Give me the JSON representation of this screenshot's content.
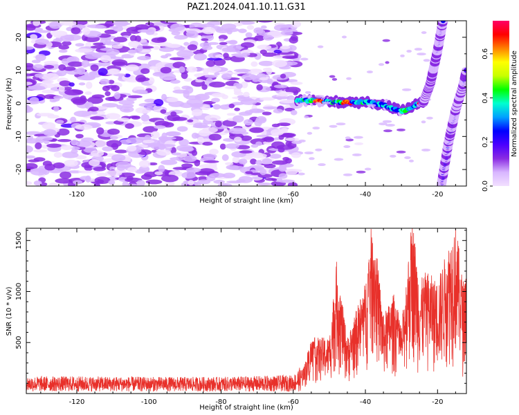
{
  "figure_title": "PAZ1.2024.041.10.11.G31",
  "chart_data": [
    {
      "type": "heatmap",
      "xlabel": "Height of straight line (km)",
      "ylabel": "Frequency (Hz)",
      "xlim": [
        -134,
        -12
      ],
      "ylim": [
        -25,
        25
      ],
      "xticks": [
        -120,
        -100,
        -80,
        -60,
        -40,
        -20
      ],
      "yticks": [
        -20,
        -10,
        0,
        10,
        20
      ],
      "colorbar": {
        "label": "Normalized spectral amplitude",
        "range": [
          0.0,
          0.75
        ],
        "ticks": [
          0.0,
          0.2,
          0.4,
          0.6
        ],
        "colormap": [
          "#f2e0ff",
          "#d8b6ff",
          "#8a2be2",
          "#4b00ff",
          "#0000ff",
          "#00a0ff",
          "#00ffd0",
          "#00ff00",
          "#c8ff00",
          "#ffff00",
          "#ff8000",
          "#ff0000",
          "#ff0066"
        ]
      },
      "features": {
        "noise_region_x": [
          -134,
          -59
        ],
        "carrier_track": {
          "x": [
            -59,
            -55,
            -50,
            -45,
            -40,
            -35,
            -30,
            -27,
            -24,
            -23
          ],
          "y": [
            1.0,
            0.8,
            0.5,
            0.3,
            0.5,
            -0.5,
            -2.5,
            -1.0,
            0.5,
            1.0
          ],
          "peak_amplitude_x": [
            -53,
            -45,
            -24
          ]
        },
        "steep_branch": {
          "x": [
            -24,
            -22,
            -20,
            -18.5
          ],
          "y": [
            0,
            6,
            16,
            25
          ]
        },
        "right_branch": {
          "x": [
            -19,
            -17,
            -15,
            -13,
            -12
          ],
          "y": [
            -25,
            -12,
            -2,
            5,
            10
          ]
        }
      }
    },
    {
      "type": "line",
      "xlabel": "Height of straight line (km)",
      "ylabel": "SNR (10 * v/v)",
      "xlim": [
        -134,
        -12
      ],
      "ylim": [
        0,
        1620
      ],
      "xticks": [
        -120,
        -100,
        -80,
        -60,
        -40,
        -20
      ],
      "yticks": [
        500,
        1000,
        1500
      ],
      "line_color": "#e8302a",
      "series_summary": {
        "x": [
          -134,
          -120,
          -100,
          -80,
          -60,
          -57,
          -55,
          -50,
          -48,
          -45,
          -40,
          -38,
          -35,
          -32,
          -30,
          -27,
          -25,
          -23,
          -20,
          -15,
          -13,
          -12
        ],
        "y_baseline": [
          130,
          130,
          125,
          125,
          140,
          250,
          500,
          500,
          1180,
          500,
          1000,
          1600,
          700,
          900,
          600,
          1600,
          1000,
          1100,
          1000,
          1550,
          1000,
          1150
        ]
      }
    }
  ]
}
